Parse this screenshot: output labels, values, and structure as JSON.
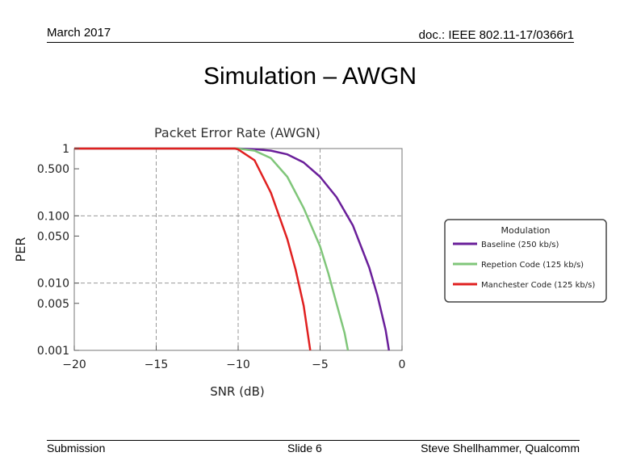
{
  "header": {
    "date": "March 2017",
    "doc_id": "doc.: IEEE 802.11-17/0366r1"
  },
  "slide_title": "Simulation – AWGN",
  "footer": {
    "left": "Submission",
    "center": "Slide 6",
    "right": "Steve Shellhammer, Qualcomm"
  },
  "chart_data": {
    "type": "line",
    "title": "Packet Error Rate (AWGN)",
    "xlabel": "SNR (dB)",
    "ylabel": "PER",
    "xlim": [
      -20,
      0
    ],
    "ylim": [
      0.001,
      1
    ],
    "yscale": "log",
    "x_ticks": [
      -20,
      -15,
      -10,
      -5,
      0
    ],
    "x_tick_labels": [
      "−20",
      "−15",
      "−10",
      "−5",
      "0"
    ],
    "y_ticks": [
      1,
      0.5,
      0.1,
      0.05,
      0.01,
      0.005,
      0.001
    ],
    "y_tick_labels": [
      "1",
      "0.500",
      "0.100",
      "0.050",
      "0.010",
      "0.005",
      "0.001"
    ],
    "grid_x": [
      -15,
      -10,
      -5
    ],
    "grid_y": [
      0.1,
      0.01
    ],
    "grid": true,
    "legend": {
      "title": "Modulation",
      "placement": "right"
    },
    "series": [
      {
        "name": "Baseline (250 kb/s)",
        "color": "#6a1f9a",
        "points": [
          [
            -20,
            1
          ],
          [
            -12,
            1
          ],
          [
            -10,
            1
          ],
          [
            -9,
            0.98
          ],
          [
            -8,
            0.93
          ],
          [
            -7,
            0.82
          ],
          [
            -6,
            0.62
          ],
          [
            -5,
            0.38
          ],
          [
            -4,
            0.19
          ],
          [
            -3,
            0.072
          ],
          [
            -2,
            0.017
          ],
          [
            -1.5,
            0.0065
          ],
          [
            -1,
            0.002
          ],
          [
            -0.8,
            0.001
          ]
        ]
      },
      {
        "name": "Repetion Code (125 kb/s)",
        "color": "#80c67a",
        "points": [
          [
            -20,
            1
          ],
          [
            -12,
            1
          ],
          [
            -10,
            1
          ],
          [
            -9,
            0.93
          ],
          [
            -8,
            0.72
          ],
          [
            -7,
            0.38
          ],
          [
            -6,
            0.13
          ],
          [
            -5,
            0.035
          ],
          [
            -4.5,
            0.014
          ],
          [
            -4,
            0.005
          ],
          [
            -3.5,
            0.0018
          ],
          [
            -3.3,
            0.001
          ]
        ]
      },
      {
        "name": "Manchester Code (125 kb/s)",
        "color": "#e02020",
        "points": [
          [
            -20,
            1
          ],
          [
            -12,
            1
          ],
          [
            -10.2,
            1
          ],
          [
            -10,
            0.97
          ],
          [
            -9,
            0.67
          ],
          [
            -8,
            0.22
          ],
          [
            -7,
            0.045
          ],
          [
            -6.5,
            0.016
          ],
          [
            -6,
            0.0046
          ],
          [
            -5.6,
            0.001
          ]
        ]
      }
    ]
  }
}
